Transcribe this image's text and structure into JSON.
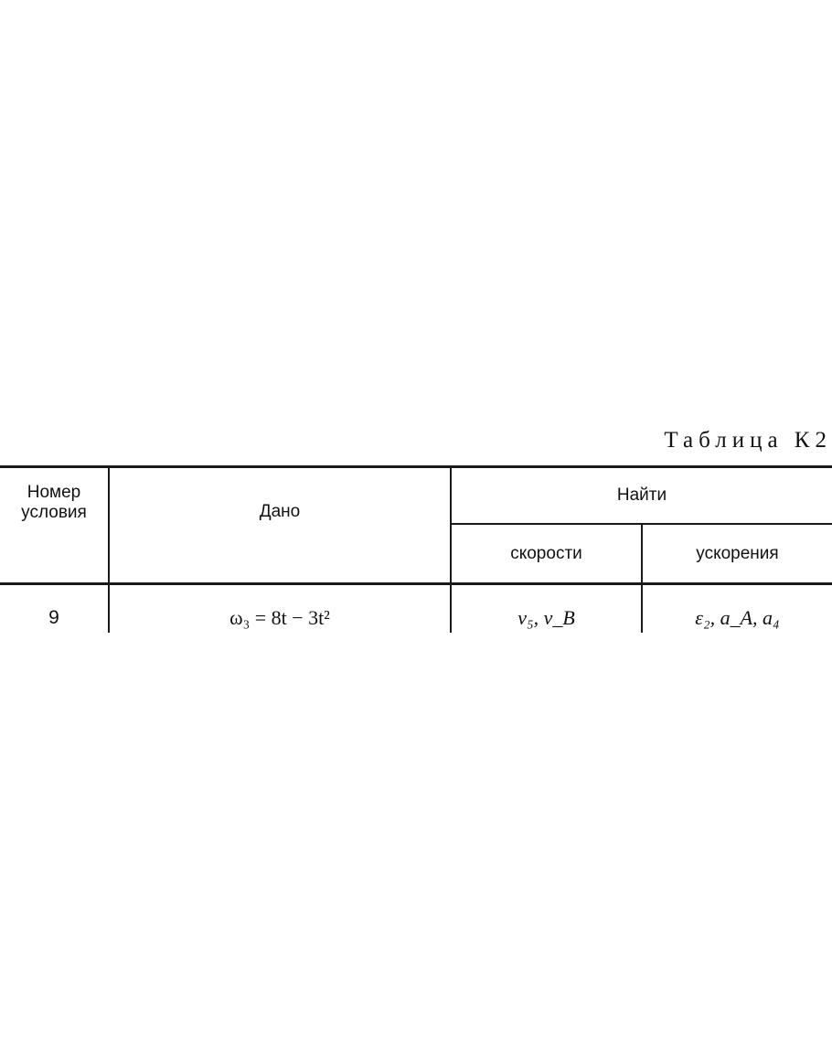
{
  "table": {
    "title": "Таблица К2",
    "headers": {
      "condition_number": "Номер условия",
      "given": "Дано",
      "find": "Найти",
      "velocities": "скорости",
      "accelerations": "ускорения"
    },
    "rows": [
      {
        "number": "9",
        "given": "ω₃ = 8t − 3t²",
        "velocities": "v₅, v_B",
        "accelerations": "ε₂, a_A, a₄"
      }
    ]
  }
}
